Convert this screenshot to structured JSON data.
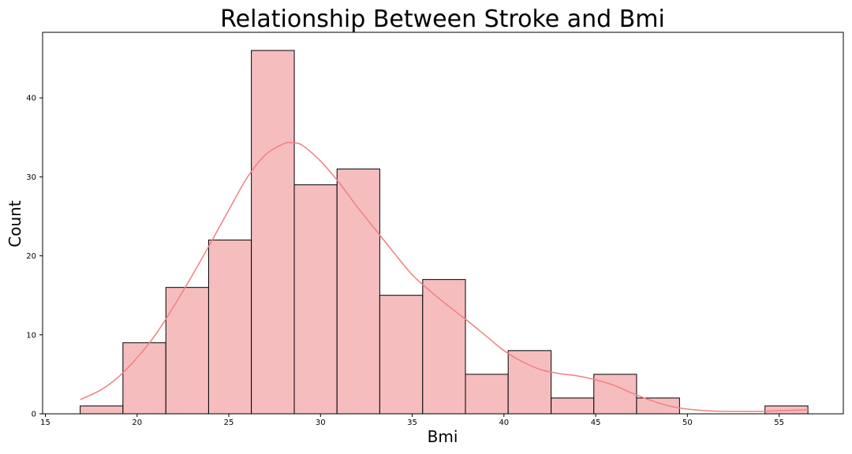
{
  "chart_data": {
    "type": "bar",
    "title": "Relationship Between Stroke and Bmi",
    "xlabel": "Bmi",
    "ylabel": "Count",
    "xlim": [
      14.85,
      58.5
    ],
    "ylim": [
      0,
      48.3
    ],
    "x_ticks": [
      15,
      20,
      25,
      30,
      35,
      40,
      45,
      50,
      55
    ],
    "y_ticks": [
      0,
      10,
      20,
      30,
      40
    ],
    "bins": [
      {
        "start": 16.9,
        "end": 19.23,
        "count": 1
      },
      {
        "start": 19.23,
        "end": 21.57,
        "count": 9
      },
      {
        "start": 21.57,
        "end": 23.9,
        "count": 16
      },
      {
        "start": 23.9,
        "end": 26.23,
        "count": 22
      },
      {
        "start": 26.23,
        "end": 28.57,
        "count": 46
      },
      {
        "start": 28.57,
        "end": 30.9,
        "count": 29
      },
      {
        "start": 30.9,
        "end": 33.23,
        "count": 31
      },
      {
        "start": 33.23,
        "end": 35.57,
        "count": 15
      },
      {
        "start": 35.57,
        "end": 37.9,
        "count": 17
      },
      {
        "start": 37.9,
        "end": 40.23,
        "count": 5
      },
      {
        "start": 40.23,
        "end": 42.57,
        "count": 8
      },
      {
        "start": 42.57,
        "end": 44.9,
        "count": 2
      },
      {
        "start": 44.9,
        "end": 47.23,
        "count": 5
      },
      {
        "start": 47.23,
        "end": 49.57,
        "count": 2
      },
      {
        "start": 49.57,
        "end": 51.9,
        "count": 0
      },
      {
        "start": 51.9,
        "end": 54.23,
        "count": 0
      },
      {
        "start": 54.23,
        "end": 56.57,
        "count": 1
      }
    ],
    "kde": {
      "x": [
        16.9,
        18,
        19,
        20,
        21,
        22,
        23,
        24,
        25,
        26,
        27,
        28,
        28.5,
        29,
        30,
        31,
        32,
        33,
        34,
        35,
        36,
        37,
        38,
        39,
        40,
        41,
        42,
        43,
        44,
        45,
        46,
        47,
        48,
        49,
        50,
        51,
        52,
        53,
        54,
        55,
        56.57
      ],
      "y": [
        1.8,
        3.0,
        4.7,
        7.1,
        10.0,
        13.6,
        17.5,
        21.6,
        25.8,
        29.9,
        32.8,
        34.2,
        34.3,
        34.0,
        32.0,
        29.3,
        26.2,
        23.3,
        20.4,
        17.6,
        15.5,
        13.6,
        11.8,
        9.9,
        8.0,
        6.6,
        5.6,
        5.1,
        4.8,
        4.3,
        3.6,
        2.6,
        1.7,
        1.0,
        0.6,
        0.4,
        0.3,
        0.3,
        0.3,
        0.4,
        0.5
      ]
    },
    "colors": {
      "bar_fill": "#f6bdbf",
      "bar_edge": "#000000",
      "kde_line": "#f08080"
    },
    "grid": false,
    "legend": "none"
  }
}
